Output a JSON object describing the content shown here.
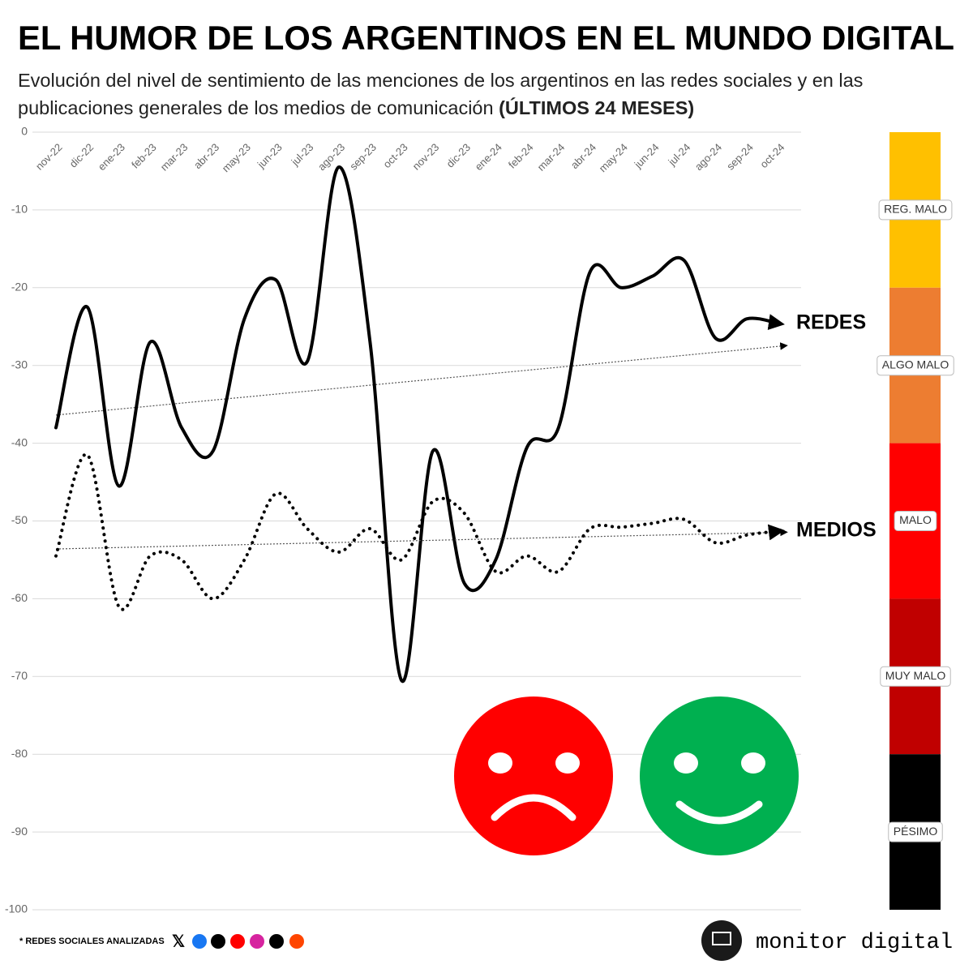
{
  "chart_data": {
    "type": "line",
    "title": "EL HUMOR DE LOS ARGENTINOS EN EL MUNDO DIGITAL",
    "subtitle": "Evolución del nivel de sentimiento de las menciones de los argentinos en las redes sociales y en las publicaciones generales de los medios de comunicación",
    "subtitle_bold": "(ÚLTIMOS 24 MESES)",
    "categories": [
      "nov-22",
      "dic-22",
      "ene-23",
      "feb-23",
      "mar-23",
      "abr-23",
      "may-23",
      "jun-23",
      "jul-23",
      "ago-23",
      "sep-23",
      "oct-23",
      "nov-23",
      "dic-23",
      "ene-24",
      "feb-24",
      "mar-24",
      "abr-24",
      "may-24",
      "jun-24",
      "jul-24",
      "ago-24",
      "sep-24",
      "oct-24"
    ],
    "series": [
      {
        "name": "REDES",
        "color": "#000000",
        "style": "solid",
        "trendline": true,
        "values": [
          -38,
          -22.5,
          -45.5,
          -27,
          -38,
          -41,
          -24,
          -19,
          -29.5,
          -4.5,
          -27,
          -70.5,
          -41,
          -58,
          -55,
          -40.5,
          -38,
          -18,
          -20,
          -18.5,
          -16.5,
          -26.5,
          -24,
          -24.6
        ]
      },
      {
        "name": "MEDIOS",
        "color": "#000000",
        "style": "dotted",
        "trendline": true,
        "values": [
          -54.5,
          -41.5,
          -61,
          -54.5,
          -55,
          -60,
          -55,
          -46.5,
          -51,
          -54,
          -51,
          -55,
          -47.5,
          -49,
          -56.5,
          -54.5,
          -56.5,
          -51,
          -50.8,
          -50.3,
          -49.8,
          -52.8,
          -51.8,
          -51.3
        ]
      }
    ],
    "ylim": [
      -100,
      0
    ],
    "yticks": [
      0,
      -10,
      -20,
      -30,
      -40,
      -50,
      -60,
      -70,
      -80,
      -90,
      -100
    ],
    "grid": true,
    "bands": [
      {
        "label": "REG. MALO",
        "from": 0,
        "to": -20,
        "color": "#ffc000"
      },
      {
        "label": "ALGO MALO",
        "from": -20,
        "to": -40,
        "color": "#ed7d31"
      },
      {
        "label": "MALO",
        "from": -40,
        "to": -60,
        "color": "#ff0000"
      },
      {
        "label": "MUY MALO",
        "from": -60,
        "to": -80,
        "color": "#c00000"
      },
      {
        "label": "PÉSIMO",
        "from": -80,
        "to": -100,
        "color": "#000000"
      }
    ],
    "footnote": "* REDES SOCIALES ANALIZADAS",
    "brand": "monitor digital"
  }
}
